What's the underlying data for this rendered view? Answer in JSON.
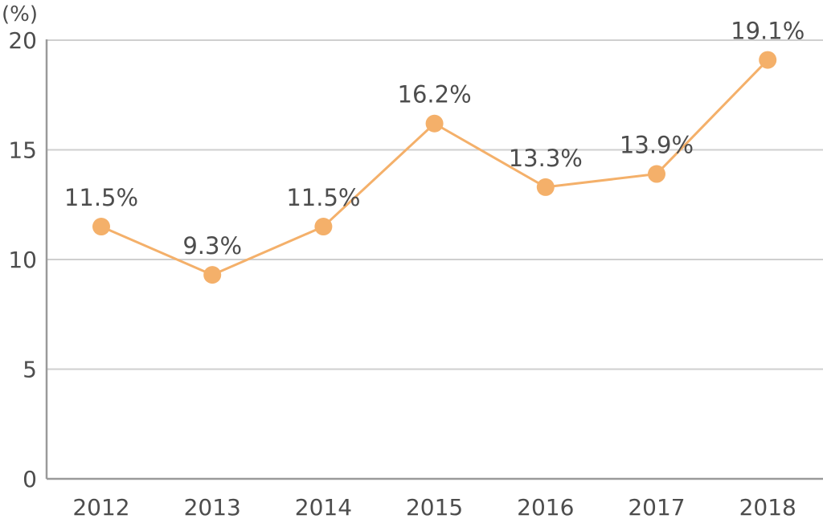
{
  "chart_data": {
    "type": "line",
    "categories": [
      "2012",
      "2013",
      "2014",
      "2015",
      "2016",
      "2017",
      "2018"
    ],
    "series": [
      {
        "values": [
          11.5,
          9.3,
          11.5,
          16.2,
          13.3,
          13.9,
          19.1
        ],
        "labels": [
          "11.5%",
          "9.3%",
          "11.5%",
          "16.2%",
          "13.3%",
          "13.9%",
          "19.1%"
        ],
        "color": "#f4b06a"
      }
    ],
    "y_unit": "(%)",
    "ylim": [
      0,
      20
    ],
    "yticks": [
      0,
      5,
      10,
      15,
      20
    ],
    "ytick_labels": [
      "0",
      "5",
      "10",
      "15",
      "20"
    ],
    "grid": true,
    "legend": "none",
    "colors": {
      "grid": "#cfcfcf",
      "axis": "#9a9a9a",
      "text": "#4d4d4d"
    }
  }
}
